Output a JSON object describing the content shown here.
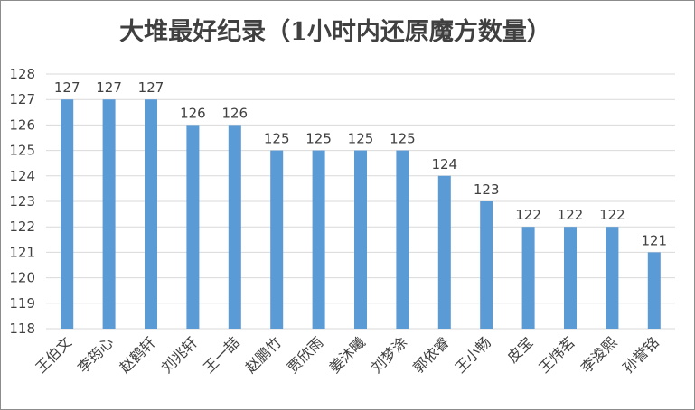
{
  "chart_data": {
    "type": "bar",
    "title": "大堆最好纪录（1小时内还原魔方数量）",
    "xlabel": "",
    "ylabel": "",
    "categories": [
      "王伯文",
      "李筠心",
      "赵鹤轩",
      "刘兆轩",
      "王一喆",
      "赵鹏竹",
      "贾欣雨",
      "姜沐曦",
      "刘梦涂",
      "郭依睿",
      "王小畅",
      "皮宝",
      "王炜茗",
      "李浚熙",
      "孙誉铭"
    ],
    "values": [
      127,
      127,
      127,
      126,
      126,
      125,
      125,
      125,
      125,
      124,
      123,
      122,
      122,
      122,
      121
    ],
    "ylim": [
      118,
      128
    ],
    "yticks": [
      118,
      119,
      120,
      121,
      122,
      123,
      124,
      125,
      126,
      127,
      128
    ],
    "grid": true,
    "legend": "none",
    "bar_color": "#5b9bd5",
    "grid_color": "#d9d9d9"
  }
}
